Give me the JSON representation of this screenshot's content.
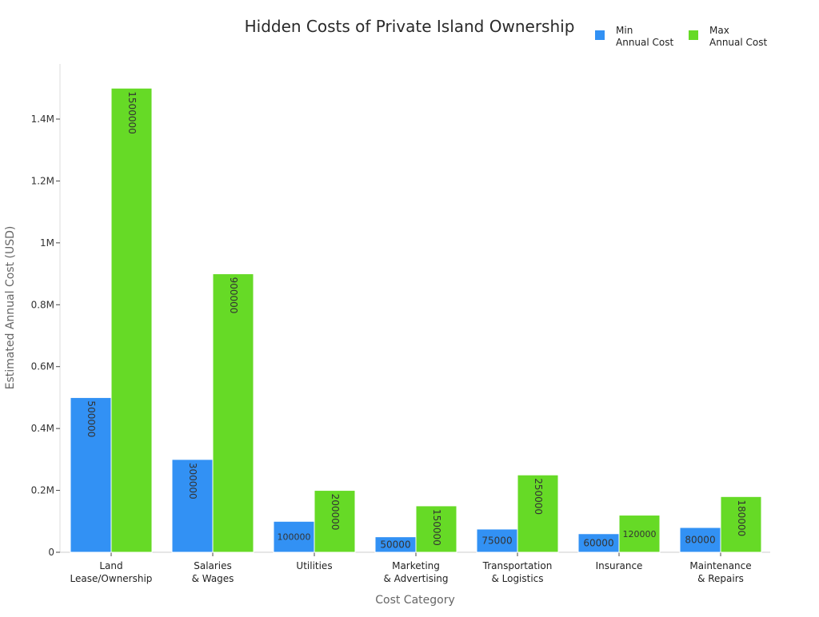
{
  "chart_data": {
    "type": "bar",
    "title": "Hidden Costs of Private Island Ownership",
    "xlabel": "Cost Category",
    "ylabel": "Estimated Annual Cost (USD)",
    "categories": [
      [
        "Land",
        "Lease/Ownership"
      ],
      [
        "Salaries",
        "& Wages"
      ],
      [
        "Utilities"
      ],
      [
        "Marketing",
        "& Advertising"
      ],
      [
        "Transportation",
        "& Logistics"
      ],
      [
        "Insurance"
      ],
      [
        "Maintenance",
        "& Repairs"
      ]
    ],
    "series": [
      {
        "name": [
          "Min",
          "Annual Cost"
        ],
        "color": "#3291F4",
        "values": [
          500000,
          300000,
          100000,
          50000,
          75000,
          60000,
          80000
        ]
      },
      {
        "name": [
          "Max",
          "Annual Cost"
        ],
        "color": "#66DA26",
        "values": [
          1500000,
          900000,
          200000,
          150000,
          250000,
          120000,
          180000
        ]
      }
    ],
    "yticks": [
      0,
      200000,
      400000,
      600000,
      800000,
      1000000,
      1200000,
      1400000
    ],
    "ytick_labels": [
      "0",
      "0.2M",
      "0.4M",
      "0.6M",
      "0.8M",
      "1M",
      "1.2M",
      "1.4M"
    ],
    "ylim": [
      0,
      1580000
    ],
    "grid": false,
    "legend": "top-right"
  }
}
